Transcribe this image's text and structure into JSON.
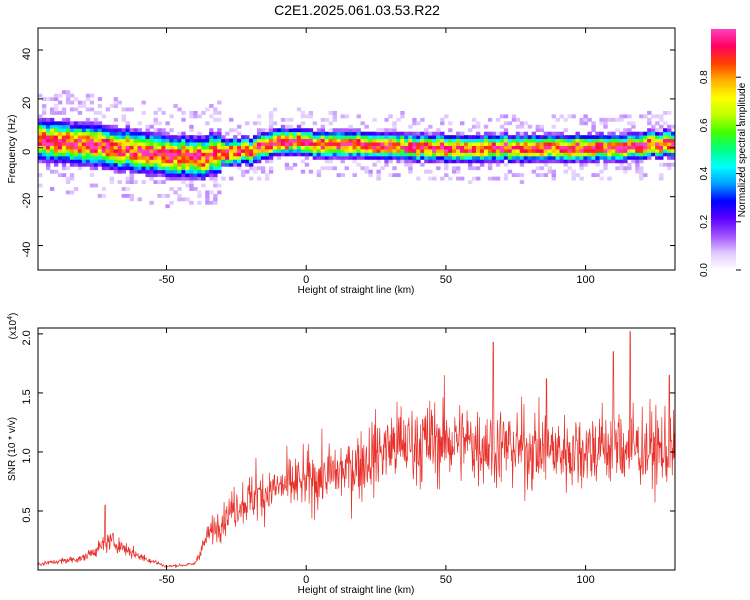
{
  "title": "C2E1.2025.061.03.53.R22",
  "colors": {
    "snr_line": "#e8302a",
    "colormap": [
      "#ffffff",
      "#e0c8ff",
      "#a050ff",
      "#5a00ff",
      "#0000ff",
      "#00a0ff",
      "#00ffff",
      "#00ff80",
      "#40ff00",
      "#c0ff00",
      "#ffff00",
      "#ffb000",
      "#ff4000",
      "#ff0060",
      "#ff40c0"
    ]
  },
  "chart_data": [
    {
      "type": "heatmap",
      "xlabel": "Height of straight line (km)",
      "ylabel": "Frequency (Hz)",
      "xlim": [
        -96,
        132
      ],
      "ylim": [
        -50,
        49
      ],
      "xticks": [
        -50,
        0,
        50,
        100
      ],
      "xtick_labels": [
        "-50",
        "0",
        "50",
        "100"
      ],
      "yticks": [
        -40,
        -20,
        0,
        20,
        40
      ],
      "ytick_labels": [
        "-40",
        "-20",
        "0",
        "20",
        "40"
      ],
      "ridge_center": [
        {
          "x": -96,
          "y": 3
        },
        {
          "x": -80,
          "y": 2
        },
        {
          "x": -65,
          "y": -1
        },
        {
          "x": -50,
          "y": -3
        },
        {
          "x": -40,
          "y": -4
        },
        {
          "x": -30,
          "y": -2
        },
        {
          "x": -20,
          "y": -1
        },
        {
          "x": -10,
          "y": 3
        },
        {
          "x": 0,
          "y": 2
        },
        {
          "x": 20,
          "y": 1
        },
        {
          "x": 50,
          "y": 0
        },
        {
          "x": 80,
          "y": 0
        },
        {
          "x": 110,
          "y": 0
        },
        {
          "x": 132,
          "y": 2
        }
      ],
      "colorbar": {
        "label": "Normalized spectral amplitude",
        "range": [
          0,
          1
        ],
        "ticks": [
          0.0,
          0.2,
          0.4,
          0.6,
          0.8
        ],
        "tick_labels": [
          "0.0",
          "0.2",
          "0.4",
          "0.6",
          "0.8"
        ]
      }
    },
    {
      "type": "line",
      "xlabel": "Height of straight line (km)",
      "ylabel": "SNR (10 * v/v)",
      "y_multiplier": "(x10",
      "y_multiplier_exp": "4",
      "y_multiplier_close": ")",
      "xlim": [
        -96,
        132
      ],
      "ylim": [
        0,
        2.05
      ],
      "xticks": [
        -50,
        0,
        50,
        100
      ],
      "xtick_labels": [
        "-50",
        "0",
        "50",
        "100"
      ],
      "yticks": [
        0.5,
        1.0,
        1.5,
        2.0
      ],
      "ytick_labels": [
        "0.5",
        "1.0",
        "1.5",
        "2.0"
      ],
      "series": [
        {
          "envelope": [
            {
              "x": -96,
              "y": 0.05
            },
            {
              "x": -80,
              "y": 0.1
            },
            {
              "x": -70,
              "y": 0.25
            },
            {
              "x": -60,
              "y": 0.12
            },
            {
              "x": -50,
              "y": 0.03
            },
            {
              "x": -40,
              "y": 0.05
            },
            {
              "x": -35,
              "y": 0.3
            },
            {
              "x": -25,
              "y": 0.55
            },
            {
              "x": -10,
              "y": 0.7
            },
            {
              "x": 0,
              "y": 0.75
            },
            {
              "x": 15,
              "y": 0.85
            },
            {
              "x": 30,
              "y": 1.05
            },
            {
              "x": 50,
              "y": 1.1
            },
            {
              "x": 70,
              "y": 1.05
            },
            {
              "x": 90,
              "y": 1.0
            },
            {
              "x": 110,
              "y": 1.05
            },
            {
              "x": 132,
              "y": 1.0
            }
          ],
          "peaks": [
            {
              "x": -72,
              "y": 0.55
            },
            {
              "x": -18,
              "y": 0.95
            },
            {
              "x": 67,
              "y": 1.93
            },
            {
              "x": 86,
              "y": 1.62
            },
            {
              "x": 110,
              "y": 1.85
            },
            {
              "x": 116,
              "y": 2.02
            },
            {
              "x": 130,
              "y": 1.65
            }
          ]
        }
      ]
    }
  ]
}
